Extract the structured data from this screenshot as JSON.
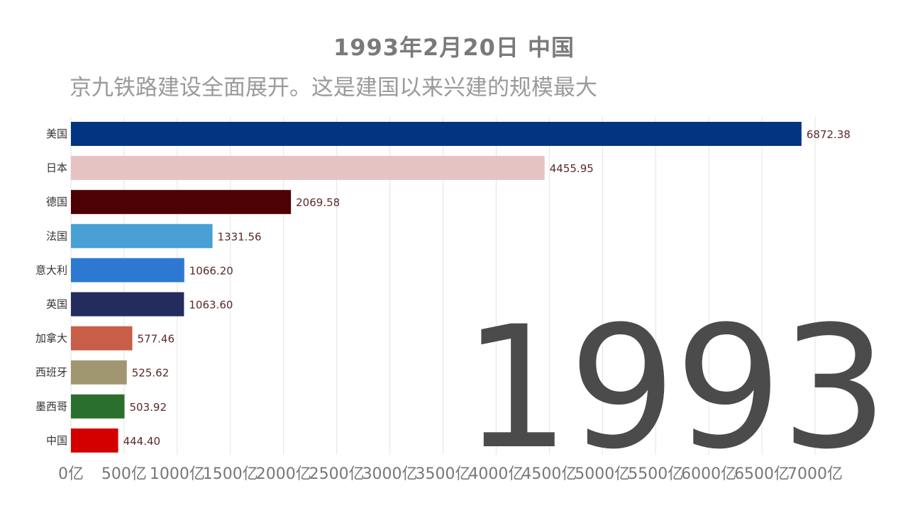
{
  "title": "1993年2月20日 中国",
  "subtitle": "京九铁路建设全面展开。这是建国以来兴建的规模最大",
  "year_display": "1993",
  "chart_data": {
    "type": "bar",
    "orientation": "horizontal",
    "categories": [
      "美国",
      "日本",
      "德国",
      "法国",
      "意大利",
      "英国",
      "加拿大",
      "西班牙",
      "墨西哥",
      "中国"
    ],
    "values": [
      6872.38,
      4455.95,
      2069.58,
      1331.56,
      1066.2,
      1063.6,
      577.46,
      525.62,
      503.92,
      444.4
    ],
    "value_labels": [
      "6872.38",
      "4455.95",
      "2069.58",
      "1331.56",
      "1066.20",
      "1063.60",
      "577.46",
      "525.62",
      "503.92",
      "444.40"
    ],
    "colors": [
      "#033481",
      "#e6c3c3",
      "#4d0104",
      "#48a0d4",
      "#2d79d1",
      "#232c5c",
      "#c85d48",
      "#a09771",
      "#2a6f2d",
      "#d40000"
    ],
    "x_ticks": [
      "0亿",
      "500亿",
      "1000亿",
      "1500亿",
      "2000亿",
      "2500亿",
      "3000亿",
      "3500亿",
      "4000亿",
      "4500亿",
      "5000亿",
      "5500亿",
      "6000亿",
      "6500亿",
      "7000亿"
    ],
    "xlim": [
      0,
      7000
    ],
    "tick_step": 500,
    "grid": true,
    "legend": "none"
  }
}
